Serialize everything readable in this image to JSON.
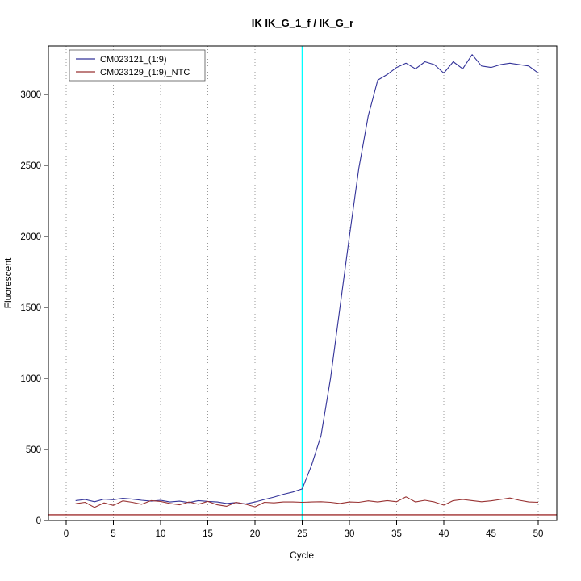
{
  "chart_data": {
    "type": "line",
    "title": "IK  IK_G_1_f / IK_G_r",
    "xlabel": "Cycle",
    "ylabel": "Fluorescent",
    "xlim": [
      0,
      50
    ],
    "ylim": [
      0,
      3341
    ],
    "x_ticks": [
      0,
      5,
      10,
      15,
      20,
      25,
      30,
      35,
      40,
      45,
      50
    ],
    "y_ticks": [
      0,
      500,
      1000,
      1500,
      2000,
      2500,
      3000
    ],
    "grid": "vertical-dotted",
    "grid_color": "#999999",
    "legend_position": "top-left",
    "ct_marker_line": {
      "x": 25,
      "color": "#00ffff"
    },
    "baseline": {
      "y": 40,
      "color": "#8b0000"
    },
    "x": [
      1,
      2,
      3,
      4,
      5,
      6,
      7,
      8,
      9,
      10,
      11,
      12,
      13,
      14,
      15,
      16,
      17,
      18,
      19,
      20,
      21,
      22,
      23,
      24,
      25,
      26,
      27,
      28,
      29,
      30,
      31,
      32,
      33,
      34,
      35,
      36,
      37,
      38,
      39,
      40,
      41,
      42,
      43,
      44,
      45,
      46,
      47,
      48,
      49,
      50
    ],
    "series": [
      {
        "name": "CM023121_(1:9)",
        "color": "#333399",
        "values": [
          140,
          148,
          132,
          150,
          146,
          156,
          150,
          142,
          136,
          142,
          130,
          136,
          126,
          140,
          134,
          130,
          120,
          126,
          116,
          130,
          148,
          164,
          184,
          200,
          222,
          390,
          600,
          1000,
          1500,
          2000,
          2480,
          2850,
          3100,
          3140,
          3190,
          3220,
          3180,
          3230,
          3210,
          3150,
          3230,
          3180,
          3280,
          3200,
          3190,
          3210,
          3220,
          3210,
          3200,
          3150
        ]
      },
      {
        "name": "CM023129_(1:9)_NTC",
        "color": "#993333",
        "values": [
          118,
          128,
          92,
          124,
          106,
          138,
          128,
          114,
          140,
          134,
          120,
          110,
          130,
          114,
          134,
          110,
          100,
          128,
          114,
          96,
          128,
          124,
          130,
          130,
          128,
          130,
          132,
          128,
          120,
          130,
          128,
          138,
          130,
          140,
          132,
          166,
          130,
          142,
          130,
          108,
          140,
          148,
          140,
          132,
          138,
          148,
          158,
          142,
          130,
          128
        ]
      }
    ]
  }
}
